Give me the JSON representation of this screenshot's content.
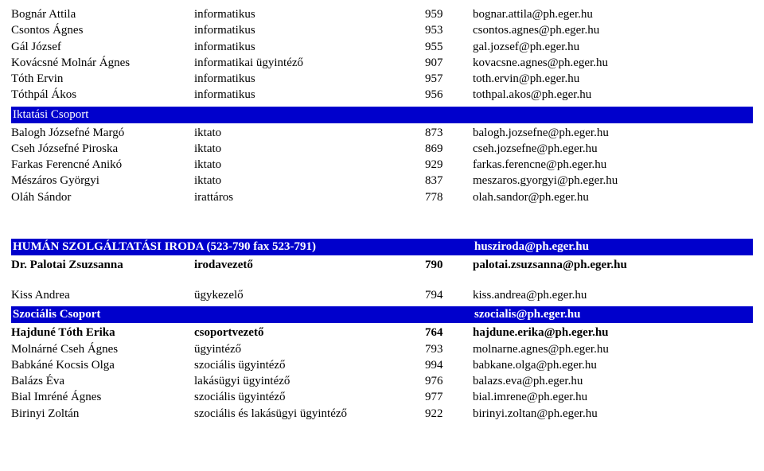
{
  "group1": [
    {
      "name": "Bognár Attila",
      "role": "informatikus",
      "num": "959",
      "mail": "bognar.attila@ph.eger.hu"
    },
    {
      "name": "Csontos Ágnes",
      "role": "informatikus",
      "num": "953",
      "mail": "csontos.agnes@ph.eger.hu"
    },
    {
      "name": "Gál József",
      "role": "informatikus",
      "num": "955",
      "mail": "gal.jozsef@ph.eger.hu"
    },
    {
      "name": "Kovácsné Molnár Ágnes",
      "role": "informatikai ügyintéző",
      "num": "907",
      "mail": "kovacsne.agnes@ph.eger.hu"
    },
    {
      "name": "Tóth Ervin",
      "role": "informatikus",
      "num": "957",
      "mail": "toth.ervin@ph.eger.hu"
    },
    {
      "name": "Tóthpál Ákos",
      "role": "informatikus",
      "num": "956",
      "mail": "tothpal.akos@ph.eger.hu"
    }
  ],
  "bar1": {
    "title": "Iktatási Csoport"
  },
  "group2": [
    {
      "name": "Balogh Józsefné Margó",
      "role": "iktato",
      "num": "873",
      "mail": "balogh.jozsefne@ph.eger.hu"
    },
    {
      "name": "Cseh Józsefné Piroska",
      "role": "iktato",
      "num": "869",
      "mail": "cseh.jozsefne@ph.eger.hu"
    },
    {
      "name": "Farkas Ferencné Anikó",
      "role": "iktato",
      "num": "929",
      "mail": "farkas.ferencne@ph.eger.hu"
    },
    {
      "name": "Mészáros Györgyi",
      "role": "iktato",
      "num": "837",
      "mail": "meszaros.gyorgyi@ph.eger.hu"
    },
    {
      "name": "Oláh Sándor",
      "role": "irattáros",
      "num": "778",
      "mail": "olah.sandor@ph.eger.hu"
    }
  ],
  "bar2": {
    "title": "HUMÁN SZOLGÁLTATÁSI IRODA (523-790 fax 523-791)",
    "mail": "husziroda@ph.eger.hu"
  },
  "headrow": {
    "name": "Dr. Palotai Zsuzsanna",
    "role": "irodavezető",
    "num": "790",
    "mail": "palotai.zsuzsanna@ph.eger.hu"
  },
  "row3": {
    "name": "Kiss Andrea",
    "role": "ügykezelő",
    "num": "794",
    "mail": "kiss.andrea@ph.eger.hu"
  },
  "bar3": {
    "title": "Szociális Csoport",
    "mail": "szocialis@ph.eger.hu"
  },
  "group4": [
    {
      "name": "Hajduné Tóth Erika",
      "role": "csoportvezető",
      "num": "764",
      "mail": "hajdune.erika@ph.eger.hu",
      "bold": true
    },
    {
      "name": "Molnárné Cseh Ágnes",
      "role": "ügyintéző",
      "num": "793",
      "mail": "molnarne.agnes@ph.eger.hu"
    },
    {
      "name": "Babkáné Kocsis Olga",
      "role": "szociális ügyintéző",
      "num": "994",
      "mail": "babkane.olga@ph.eger.hu"
    },
    {
      "name": "Balázs Éva",
      "role": "lakásügyi ügyintéző",
      "num": "976",
      "mail": "balazs.eva@ph.eger.hu"
    },
    {
      "name": "Bial Imréné Ágnes",
      "role": "szociális ügyintéző",
      "num": "977",
      "mail": "bial.imrene@ph.eger.hu"
    },
    {
      "name": "Birinyi Zoltán",
      "role": "szociális és lakásügyi ügyintéző",
      "num": "922",
      "mail": "birinyi.zoltan@ph.eger.hu"
    }
  ]
}
